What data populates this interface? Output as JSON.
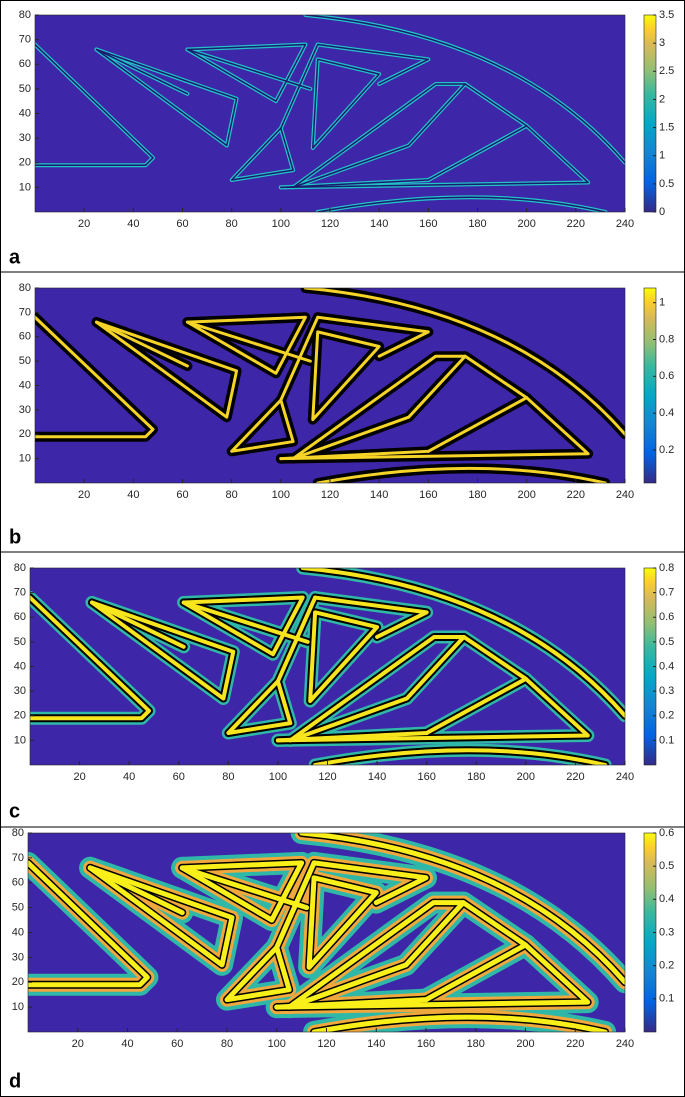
{
  "chart_data": [
    {
      "type": "contour",
      "label": "a",
      "xlim": [
        0,
        240
      ],
      "ylim": [
        0,
        80
      ],
      "xticks": [
        20,
        40,
        60,
        80,
        100,
        120,
        140,
        160,
        180,
        200,
        220,
        240
      ],
      "yticks": [
        10,
        20,
        30,
        40,
        50,
        60,
        70,
        80
      ],
      "clim": [
        0,
        3.5
      ],
      "cticks": [
        0,
        0.5,
        1,
        1.5,
        2,
        2.5,
        3,
        3.5
      ]
    },
    {
      "type": "contour",
      "label": "b",
      "xlim": [
        0,
        240
      ],
      "ylim": [
        0,
        80
      ],
      "xticks": [
        20,
        40,
        60,
        80,
        100,
        120,
        140,
        160,
        180,
        200,
        220,
        240
      ],
      "yticks": [
        10,
        20,
        30,
        40,
        50,
        60,
        70,
        80
      ],
      "clim": [
        0.02,
        1.08
      ],
      "cticks": [
        0.2,
        0.4,
        0.6,
        0.8,
        1
      ]
    },
    {
      "type": "contour",
      "label": "c",
      "xlim": [
        0,
        240
      ],
      "ylim": [
        0,
        80
      ],
      "xticks": [
        20,
        40,
        60,
        80,
        100,
        120,
        140,
        160,
        180,
        200,
        220,
        240
      ],
      "yticks": [
        10,
        20,
        30,
        40,
        50,
        60,
        70,
        80
      ],
      "clim": [
        0,
        0.8
      ],
      "cticks": [
        0.1,
        0.2,
        0.3,
        0.4,
        0.5,
        0.6,
        0.7,
        0.8
      ]
    },
    {
      "type": "contour",
      "label": "d",
      "xlim": [
        0,
        240
      ],
      "ylim": [
        0,
        80
      ],
      "xticks": [
        20,
        40,
        60,
        80,
        100,
        120,
        140,
        160,
        180,
        200,
        220,
        240
      ],
      "yticks": [
        10,
        20,
        30,
        40,
        50,
        60,
        70,
        80
      ],
      "clim": [
        0,
        0.6
      ],
      "cticks": [
        0.1,
        0.2,
        0.3,
        0.4,
        0.5,
        0.6
      ]
    }
  ]
}
